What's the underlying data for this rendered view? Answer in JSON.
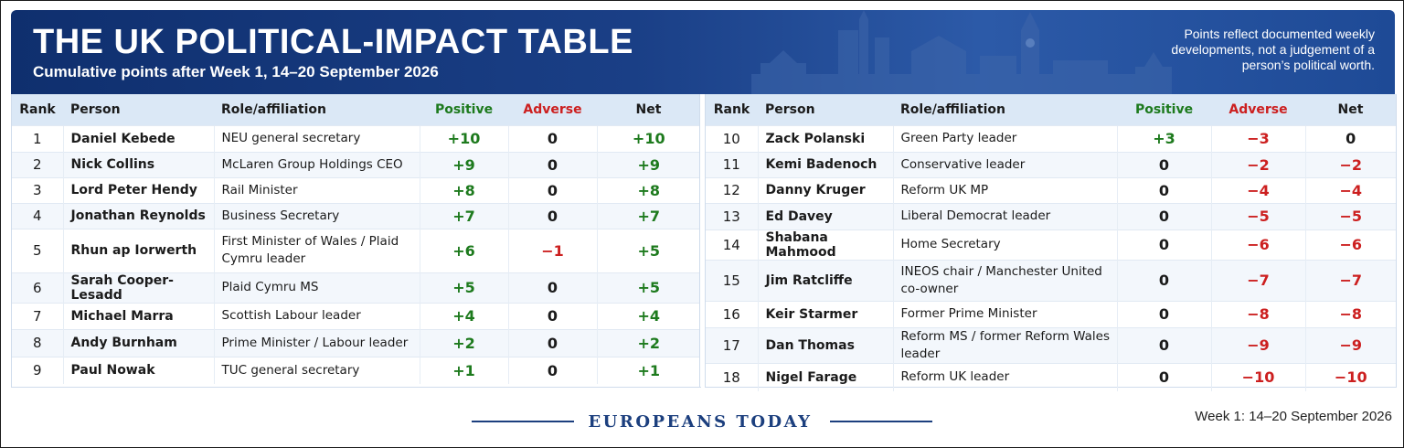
{
  "header": {
    "title": "THE UK POLITICAL-IMPACT TABLE",
    "subtitle": "Cumulative points after Week 1, 14–20 September 2026",
    "note": "Points reflect documented weekly developments, not a judgement of a person’s political worth."
  },
  "colors": {
    "banner": "#1a3f86",
    "positive": "#1d7a1d",
    "adverse": "#cc1f1f",
    "header_row": "#dbe8f6"
  },
  "columns": [
    "Rank",
    "Person",
    "Role/affiliation",
    "Positive",
    "Adverse",
    "Net"
  ],
  "chart_data": {
    "type": "table",
    "rows_left": [
      {
        "rank": "1",
        "person": "Daniel Kebede",
        "role": "NEU general secretary",
        "positive": "+10",
        "adverse": "0",
        "net": "+10"
      },
      {
        "rank": "2",
        "person": "Nick Collins",
        "role": "McLaren Group Holdings CEO",
        "positive": "+9",
        "adverse": "0",
        "net": "+9"
      },
      {
        "rank": "3",
        "person": "Lord Peter Hendy",
        "role": "Rail Minister",
        "positive": "+8",
        "adverse": "0",
        "net": "+8"
      },
      {
        "rank": "4",
        "person": "Jonathan Reynolds",
        "role": "Business Secretary",
        "positive": "+7",
        "adverse": "0",
        "net": "+7"
      },
      {
        "rank": "5",
        "person": "Rhun ap Iorwerth",
        "role": "First Minister of Wales / Plaid Cymru leader",
        "positive": "+6",
        "adverse": "−1",
        "net": "+5"
      },
      {
        "rank": "6",
        "person": "Sarah Cooper-Lesadd",
        "role": "Plaid Cymru MS",
        "positive": "+5",
        "adverse": "0",
        "net": "+5"
      },
      {
        "rank": "7",
        "person": "Michael Marra",
        "role": "Scottish Labour leader",
        "positive": "+4",
        "adverse": "0",
        "net": "+4"
      },
      {
        "rank": "8",
        "person": "Andy Burnham",
        "role": "Prime Minister / Labour leader",
        "positive": "+2",
        "adverse": "0",
        "net": "+2"
      },
      {
        "rank": "9",
        "person": "Paul Nowak",
        "role": "TUC general secretary",
        "positive": "+1",
        "adverse": "0",
        "net": "+1"
      }
    ],
    "rows_right": [
      {
        "rank": "10",
        "person": "Zack Polanski",
        "role": "Green Party leader",
        "positive": "+3",
        "adverse": "−3",
        "net": "0"
      },
      {
        "rank": "11",
        "person": "Kemi Badenoch",
        "role": "Conservative leader",
        "positive": "0",
        "adverse": "−2",
        "net": "−2"
      },
      {
        "rank": "12",
        "person": "Danny Kruger",
        "role": "Reform UK MP",
        "positive": "0",
        "adverse": "−4",
        "net": "−4"
      },
      {
        "rank": "13",
        "person": "Ed Davey",
        "role": "Liberal Democrat leader",
        "positive": "0",
        "adverse": "−5",
        "net": "−5"
      },
      {
        "rank": "14",
        "person": "Shabana Mahmood",
        "role": "Home Secretary",
        "positive": "0",
        "adverse": "−6",
        "net": "−6"
      },
      {
        "rank": "15",
        "person": "Jim Ratcliffe",
        "role": "INEOS chair / Manchester United co-owner",
        "positive": "0",
        "adverse": "−7",
        "net": "−7"
      },
      {
        "rank": "16",
        "person": "Keir Starmer",
        "role": "Former Prime Minister",
        "positive": "0",
        "adverse": "−8",
        "net": "−8"
      },
      {
        "rank": "17",
        "person": "Dan Thomas",
        "role": "Reform MS / former Reform Wales leader",
        "positive": "0",
        "adverse": "−9",
        "net": "−9"
      },
      {
        "rank": "18",
        "person": "Nigel Farage",
        "role": "Reform UK leader",
        "positive": "0",
        "adverse": "−10",
        "net": "−10"
      }
    ]
  },
  "footer": {
    "brand": "EUROPEANS TODAY",
    "week": "Week 1: 14–20 September 2026"
  }
}
